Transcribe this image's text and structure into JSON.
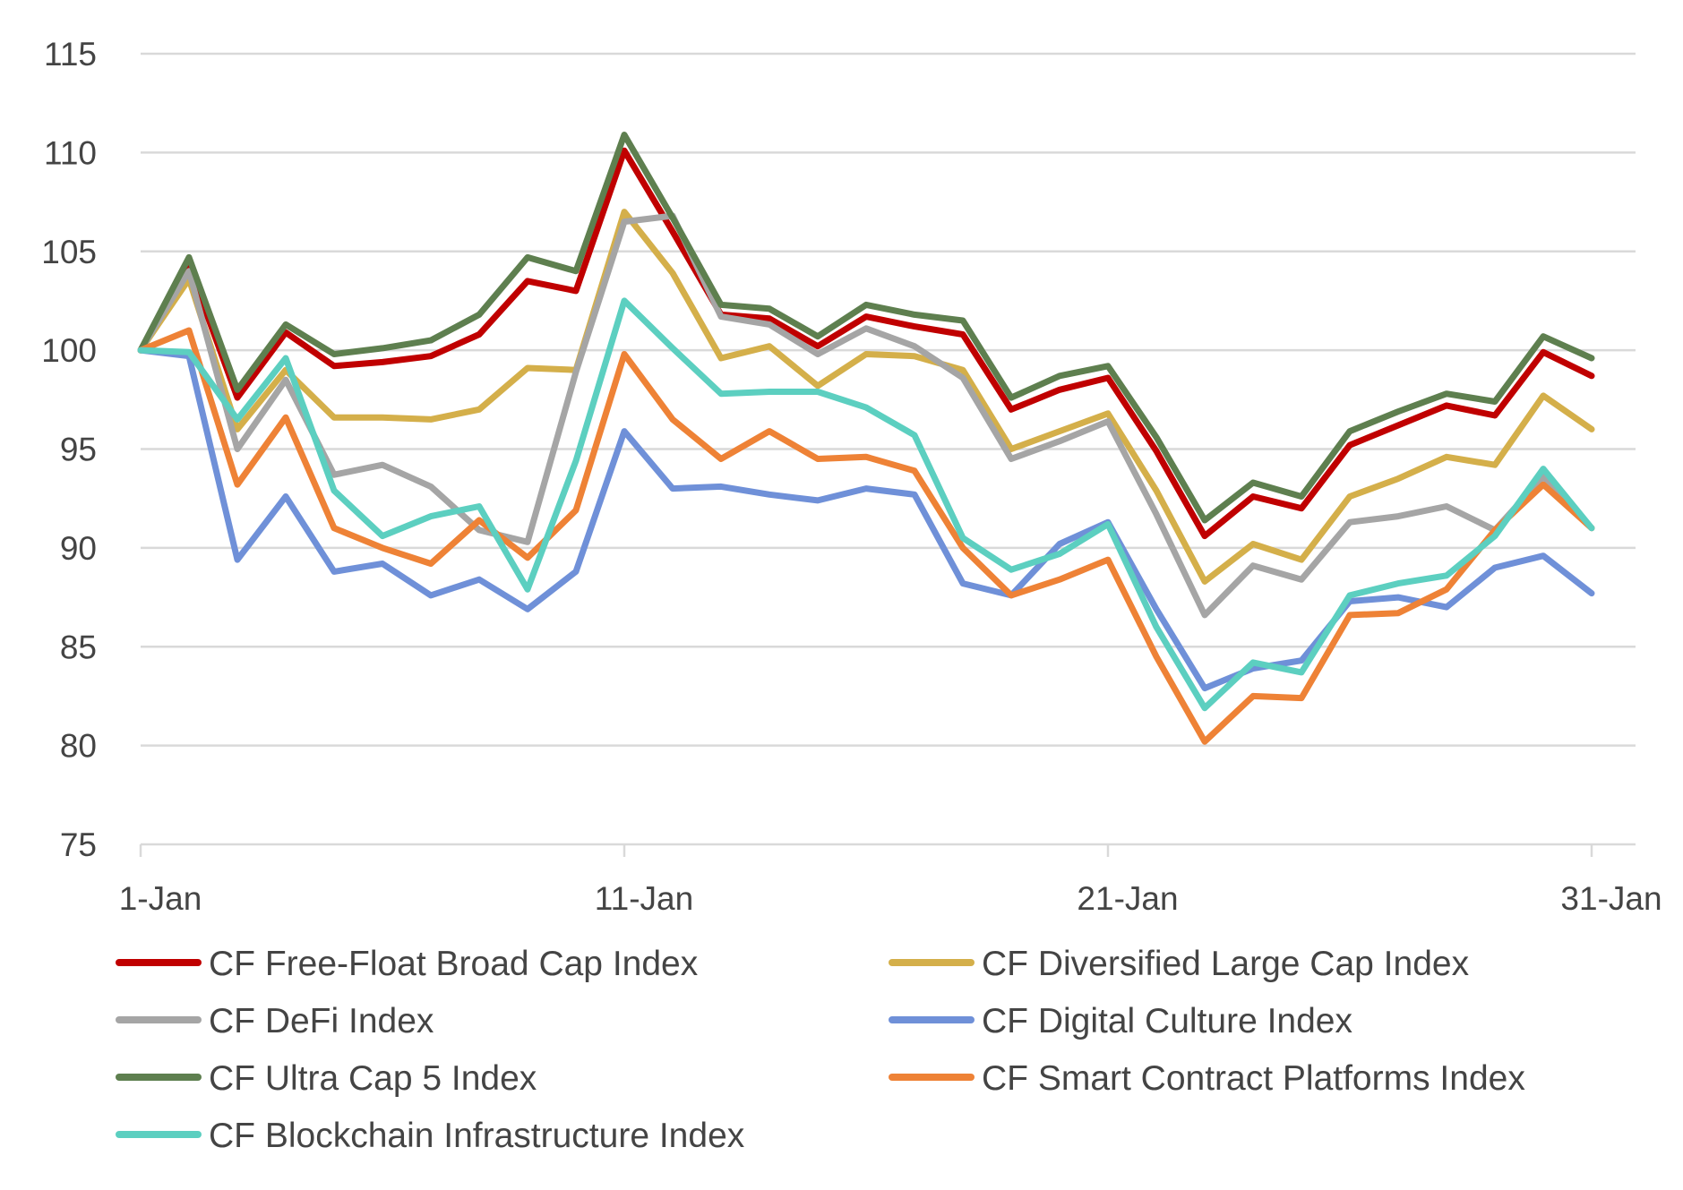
{
  "chart_data": {
    "type": "line",
    "title": "",
    "xlabel": "",
    "ylabel": "",
    "ylim": [
      75,
      115
    ],
    "y_ticks": [
      "115",
      "110",
      "105",
      "100",
      "95",
      "90",
      "85",
      "80",
      "75"
    ],
    "x_tick_labels": [
      {
        "day": 1,
        "label": "1-Jan"
      },
      {
        "day": 11,
        "label": "11-Jan"
      },
      {
        "day": 21,
        "label": "21-Jan"
      },
      {
        "day": 31,
        "label": "31-Jan"
      }
    ],
    "x": [
      1,
      2,
      3,
      4,
      5,
      6,
      7,
      8,
      9,
      10,
      11,
      12,
      13,
      14,
      15,
      16,
      17,
      18,
      19,
      20,
      21,
      22,
      23,
      24,
      25,
      26,
      27,
      28,
      29,
      30,
      31
    ],
    "grid": true,
    "legend_position": "bottom",
    "series": [
      {
        "name": "CF Free-Float Broad Cap Index",
        "color": "#c00000",
        "values": [
          100,
          104.3,
          97.6,
          100.9,
          99.2,
          99.4,
          99.7,
          100.8,
          103.5,
          103.0,
          110.1,
          106.0,
          101.8,
          101.6,
          100.2,
          101.7,
          101.2,
          100.8,
          97.0,
          98.0,
          98.6,
          94.9,
          90.6,
          92.6,
          92.0,
          95.2,
          96.2,
          97.2,
          96.7,
          99.9,
          98.7
        ]
      },
      {
        "name": "CF Diversified Large Cap Index",
        "color": "#d4af4a",
        "values": [
          100,
          103.6,
          96.0,
          99.0,
          96.6,
          96.6,
          96.5,
          97.0,
          99.1,
          99.0,
          107.0,
          103.9,
          99.6,
          100.2,
          98.2,
          99.8,
          99.7,
          99.0,
          95.0,
          95.9,
          96.8,
          92.9,
          88.3,
          90.2,
          89.4,
          92.6,
          93.5,
          94.6,
          94.2,
          97.7,
          96.0
        ]
      },
      {
        "name": "CF DeFi Index",
        "color": "#a5a5a5",
        "values": [
          100,
          104.0,
          95.0,
          98.5,
          93.7,
          94.2,
          93.1,
          90.9,
          90.3,
          98.9,
          106.5,
          106.8,
          101.7,
          101.3,
          99.8,
          101.1,
          100.2,
          98.6,
          94.5,
          95.4,
          96.4,
          91.7,
          86.6,
          89.1,
          88.4,
          91.3,
          91.6,
          92.1,
          90.9,
          93.6,
          91.0
        ]
      },
      {
        "name": "CF Digital Culture Index",
        "color": "#6f90d8",
        "values": [
          100,
          99.7,
          89.4,
          92.6,
          88.8,
          89.2,
          87.6,
          88.4,
          86.9,
          88.8,
          95.9,
          93.0,
          93.1,
          92.7,
          92.4,
          93.0,
          92.7,
          88.2,
          87.6,
          90.2,
          91.3,
          86.9,
          82.9,
          83.9,
          84.3,
          87.3,
          87.5,
          87.0,
          89.0,
          89.6,
          87.7
        ]
      },
      {
        "name": "CF Ultra Cap 5 Index",
        "color": "#5e7f4f",
        "values": [
          100,
          104.7,
          98.0,
          101.3,
          99.8,
          100.1,
          100.5,
          101.8,
          104.7,
          104.0,
          110.9,
          106.7,
          102.3,
          102.1,
          100.7,
          102.3,
          101.8,
          101.5,
          97.6,
          98.7,
          99.2,
          95.6,
          91.4,
          93.3,
          92.6,
          95.9,
          96.9,
          97.8,
          97.4,
          100.7,
          99.6
        ]
      },
      {
        "name": "CF Smart Contract Platforms Index",
        "color": "#ee8236",
        "values": [
          100,
          101.0,
          93.2,
          96.6,
          91.0,
          90.0,
          89.2,
          91.4,
          89.5,
          91.9,
          99.8,
          96.5,
          94.5,
          95.9,
          94.5,
          94.6,
          93.9,
          90.0,
          87.6,
          88.4,
          89.4,
          84.5,
          80.2,
          82.5,
          82.4,
          86.6,
          86.7,
          87.9,
          90.9,
          93.2,
          91.0
        ]
      },
      {
        "name": "CF Blockchain Infrastructure Index",
        "color": "#5ccfc0",
        "values": [
          100,
          99.9,
          96.5,
          99.6,
          92.9,
          90.6,
          91.6,
          92.1,
          87.9,
          94.4,
          102.5,
          100.1,
          97.8,
          97.9,
          97.9,
          97.1,
          95.7,
          90.5,
          88.9,
          89.7,
          91.2,
          86.0,
          81.9,
          84.2,
          83.7,
          87.6,
          88.2,
          88.6,
          90.6,
          94.0,
          91.0
        ]
      }
    ]
  }
}
